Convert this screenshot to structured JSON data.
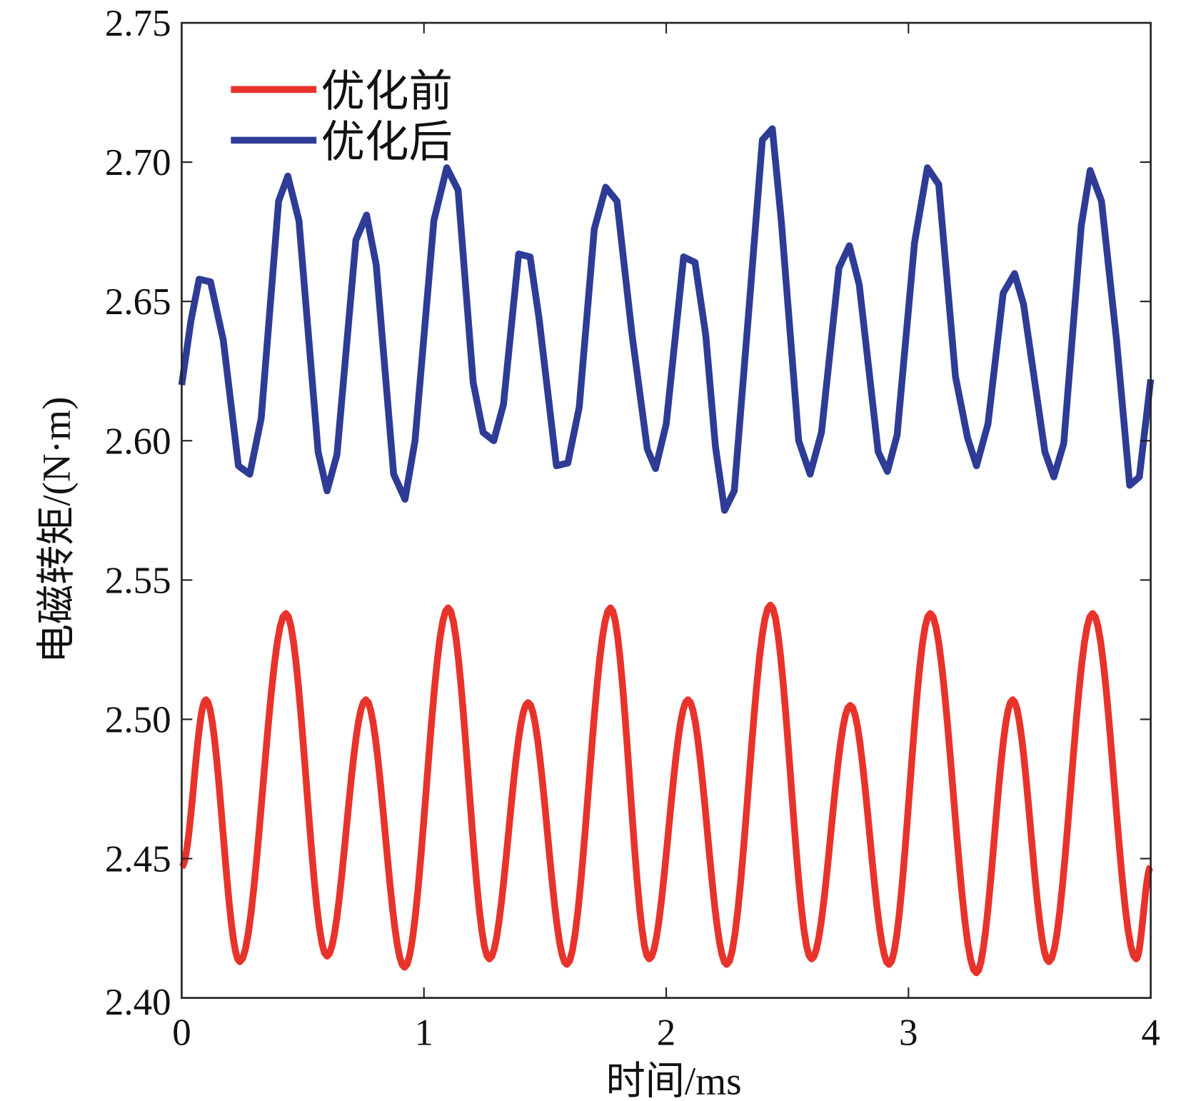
{
  "chart_data": {
    "type": "line",
    "title": "",
    "xlabel": "时间/ms",
    "ylabel": "电磁转矩/(N·m)",
    "xlim": [
      0,
      4
    ],
    "ylim": [
      2.4,
      2.75
    ],
    "xticks": [
      0,
      1,
      2,
      3,
      4
    ],
    "xtick_labels": [
      "0",
      "1",
      "2",
      "3",
      "4"
    ],
    "yticks": [
      2.4,
      2.45,
      2.5,
      2.55,
      2.6,
      2.65,
      2.7,
      2.75
    ],
    "ytick_labels": [
      "2.40",
      "2.45",
      "2.50",
      "2.55",
      "2.60",
      "2.65",
      "2.70",
      "2.75"
    ],
    "grid": false,
    "legend_position": "top-left",
    "series": [
      {
        "name": "优化前",
        "color": "#e8332b",
        "smooth": true,
        "x": [
          0,
          0.1,
          0.24,
          0.43,
          0.6,
          0.76,
          0.92,
          1.1,
          1.27,
          1.43,
          1.59,
          1.77,
          1.93,
          2.09,
          2.25,
          2.43,
          2.6,
          2.76,
          2.92,
          3.09,
          3.28,
          3.43,
          3.58,
          3.76,
          3.94,
          4.0
        ],
        "y": [
          2.447,
          2.507,
          2.413,
          2.538,
          2.415,
          2.507,
          2.411,
          2.54,
          2.414,
          2.506,
          2.412,
          2.54,
          2.414,
          2.507,
          2.412,
          2.541,
          2.414,
          2.505,
          2.412,
          2.538,
          2.409,
          2.507,
          2.413,
          2.538,
          2.414,
          2.447
        ]
      },
      {
        "name": "优化后",
        "color": "#2e3c96",
        "smooth": false,
        "x": [
          0,
          0.038,
          0.072,
          0.119,
          0.172,
          0.234,
          0.281,
          0.328,
          0.4,
          0.438,
          0.484,
          0.563,
          0.6,
          0.641,
          0.719,
          0.763,
          0.803,
          0.875,
          0.922,
          0.963,
          1.041,
          1.094,
          1.141,
          1.203,
          1.244,
          1.288,
          1.328,
          1.391,
          1.438,
          1.475,
          1.547,
          1.594,
          1.641,
          1.703,
          1.75,
          1.797,
          1.859,
          1.922,
          1.956,
          2.0,
          2.072,
          2.119,
          2.163,
          2.203,
          2.241,
          2.281,
          2.344,
          2.397,
          2.438,
          2.475,
          2.547,
          2.594,
          2.641,
          2.713,
          2.756,
          2.797,
          2.875,
          2.913,
          2.953,
          3.025,
          3.078,
          3.125,
          3.194,
          3.244,
          3.281,
          3.328,
          3.391,
          3.438,
          3.475,
          3.563,
          3.6,
          3.641,
          3.713,
          3.75,
          3.797,
          3.859,
          3.913,
          3.953,
          4.0
        ],
        "y": [
          2.62,
          2.643,
          2.658,
          2.657,
          2.636,
          2.591,
          2.588,
          2.608,
          2.686,
          2.695,
          2.679,
          2.596,
          2.582,
          2.595,
          2.672,
          2.681,
          2.663,
          2.588,
          2.579,
          2.6,
          2.679,
          2.698,
          2.69,
          2.621,
          2.603,
          2.6,
          2.613,
          2.667,
          2.666,
          2.644,
          2.591,
          2.592,
          2.612,
          2.676,
          2.691,
          2.686,
          2.638,
          2.597,
          2.59,
          2.606,
          2.666,
          2.664,
          2.638,
          2.598,
          2.575,
          2.582,
          2.65,
          2.708,
          2.712,
          2.679,
          2.6,
          2.588,
          2.603,
          2.662,
          2.67,
          2.656,
          2.596,
          2.589,
          2.602,
          2.671,
          2.698,
          2.692,
          2.623,
          2.601,
          2.591,
          2.606,
          2.653,
          2.66,
          2.649,
          2.596,
          2.587,
          2.599,
          2.677,
          2.697,
          2.686,
          2.636,
          2.584,
          2.587,
          2.622
        ]
      }
    ]
  }
}
